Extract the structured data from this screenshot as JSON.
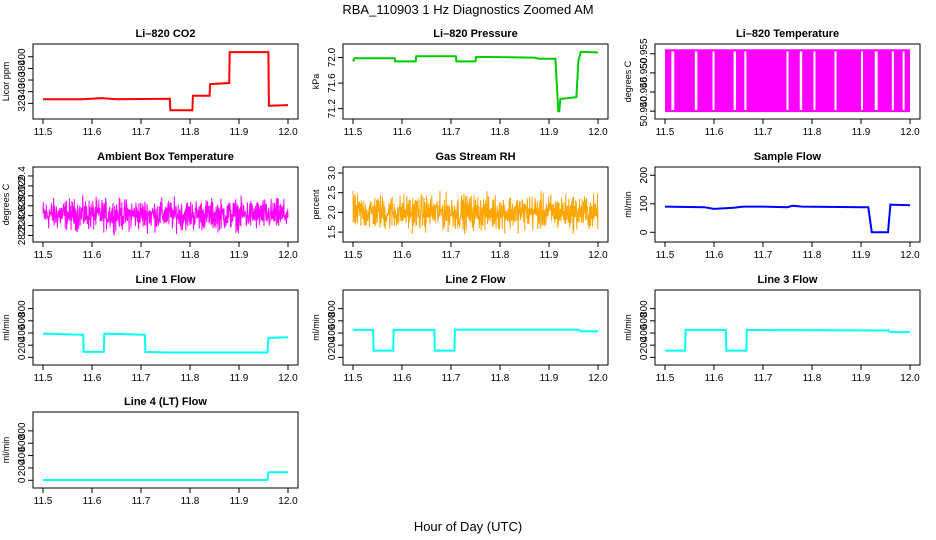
{
  "title": "RBA_110903  1 Hz Diagnostics Zoomed AM",
  "xlabel": "Hour of Day (UTC)",
  "chart_data": [
    {
      "type": "line",
      "title": "Li–820 CO2",
      "ylabel": "Licor ppm",
      "color": "#ff0000",
      "xlim": [
        11.5,
        12.0
      ],
      "ylim": [
        300,
        415
      ],
      "xticks": [
        "11.5",
        "11.6",
        "11.7",
        "11.8",
        "11.9",
        "12.0"
      ],
      "yticks": [
        "320",
        "340",
        "360",
        "380",
        "400"
      ],
      "points": [
        [
          11.5,
          327
        ],
        [
          11.58,
          327
        ],
        [
          11.62,
          329
        ],
        [
          11.65,
          327
        ],
        [
          11.759,
          328
        ],
        [
          11.76,
          308
        ],
        [
          11.805,
          308
        ],
        [
          11.806,
          333
        ],
        [
          11.84,
          333
        ],
        [
          11.841,
          353
        ],
        [
          11.88,
          355
        ],
        [
          11.881,
          408
        ],
        [
          11.96,
          408
        ],
        [
          11.961,
          316
        ],
        [
          12.0,
          317
        ]
      ]
    },
    {
      "type": "line",
      "title": "Li–820 Pressure",
      "ylabel": "kPa",
      "color": "#00cc00",
      "xlim": [
        11.5,
        12.0
      ],
      "ylim": [
        71.1,
        72.15
      ],
      "xticks": [
        "11.5",
        "11.6",
        "11.7",
        "11.8",
        "11.9",
        "12.0"
      ],
      "yticks": [
        "71.2",
        "71.6",
        "72.0"
      ],
      "points": [
        [
          11.5,
          71.94
        ],
        [
          11.503,
          71.99
        ],
        [
          11.585,
          71.99
        ],
        [
          11.586,
          71.94
        ],
        [
          11.628,
          71.94
        ],
        [
          11.629,
          72.02
        ],
        [
          11.71,
          72.02
        ],
        [
          11.711,
          71.94
        ],
        [
          11.75,
          71.94
        ],
        [
          11.751,
          72.01
        ],
        [
          11.87,
          72.0
        ],
        [
          11.88,
          71.98
        ],
        [
          11.913,
          71.98
        ],
        [
          11.919,
          71.16
        ],
        [
          11.921,
          71.16
        ],
        [
          11.923,
          71.35
        ],
        [
          11.956,
          71.38
        ],
        [
          11.96,
          71.95
        ],
        [
          11.965,
          72.09
        ],
        [
          12.0,
          72.08
        ]
      ]
    },
    {
      "type": "area",
      "title": "Li–820 Temperature",
      "ylabel": "degrees C",
      "color": "#ff00ff",
      "xlim": [
        11.5,
        12.0
      ],
      "ylim": [
        50.939,
        50.9565
      ],
      "xticks": [
        "11.5",
        "11.6",
        "11.7",
        "11.8",
        "11.9",
        "12.0"
      ],
      "yticks": [
        "50.940",
        "50.945",
        "50.950",
        "50.955"
      ],
      "y_low": 50.94,
      "y_high": 50.9559,
      "gap_ranges": [
        [
          11.513,
          11.519
        ],
        [
          11.561,
          11.566
        ],
        [
          11.597,
          11.601
        ],
        [
          11.64,
          11.645
        ],
        [
          11.662,
          11.666
        ],
        [
          11.748,
          11.752
        ],
        [
          11.775,
          11.78
        ],
        [
          11.803,
          11.806
        ],
        [
          11.846,
          11.85
        ],
        [
          11.9,
          11.903
        ],
        [
          11.928,
          11.934
        ],
        [
          11.963,
          11.966
        ],
        [
          11.985,
          11.988
        ]
      ]
    },
    {
      "type": "line",
      "title": "Ambient Box Temperature",
      "ylabel": "degrees C",
      "color": "#ff00ff",
      "xlim": [
        11.5,
        12.0
      ],
      "ylim": [
        28.15,
        29.5
      ],
      "xticks": [
        "11.5",
        "11.6",
        "11.7",
        "11.8",
        "11.9",
        "12.0"
      ],
      "yticks": [
        "28.2",
        "28.4",
        "28.6",
        "28.8",
        "29.0",
        "29.2",
        "29.4"
      ],
      "noise": {
        "center": 28.62,
        "spread": 0.45,
        "samples": 900
      }
    },
    {
      "type": "line",
      "title": "Gas Stream RH",
      "ylabel": "percent",
      "color": "#ffa500",
      "xlim": [
        11.5,
        12.0
      ],
      "ylim": [
        1.35,
        3.05
      ],
      "xticks": [
        "11.5",
        "11.6",
        "11.7",
        "11.8",
        "11.9",
        "12.0"
      ],
      "yticks": [
        "1.5",
        "2.0",
        "2.5",
        "3.0"
      ],
      "noise": {
        "center": 2.0,
        "spread": 0.65,
        "samples": 900
      }
    },
    {
      "type": "line",
      "title": "Sample Flow",
      "ylabel": "ml/min",
      "color": "#0000ff",
      "xlim": [
        11.5,
        12.0
      ],
      "ylim": [
        -20,
        215
      ],
      "xticks": [
        "11.5",
        "11.6",
        "11.7",
        "11.8",
        "11.9",
        "12.0"
      ],
      "yticks": [
        "0",
        "100",
        "200"
      ],
      "points": [
        [
          11.5,
          90
        ],
        [
          11.58,
          88
        ],
        [
          11.6,
          82
        ],
        [
          11.64,
          86
        ],
        [
          11.66,
          90
        ],
        [
          11.7,
          90
        ],
        [
          11.75,
          88
        ],
        [
          11.76,
          93
        ],
        [
          11.78,
          90
        ],
        [
          11.905,
          88
        ],
        [
          11.915,
          88
        ],
        [
          11.922,
          0
        ],
        [
          11.955,
          0
        ],
        [
          11.96,
          97
        ],
        [
          12.0,
          95
        ]
      ]
    },
    {
      "type": "line",
      "title": "Line 1 Flow",
      "ylabel": "ml/min",
      "color": "#00ffff",
      "xlim": [
        11.5,
        12.0
      ],
      "ylim": [
        -60,
        1040
      ],
      "xticks": [
        "11.5",
        "11.6",
        "11.7",
        "11.8",
        "11.9",
        "12.0"
      ],
      "yticks": [
        "0",
        "200",
        "400",
        "600",
        "800"
      ],
      "points": [
        [
          11.5,
          390
        ],
        [
          11.582,
          370
        ],
        [
          11.583,
          90
        ],
        [
          11.624,
          90
        ],
        [
          11.625,
          390
        ],
        [
          11.708,
          370
        ],
        [
          11.709,
          90
        ],
        [
          11.755,
          80
        ],
        [
          11.958,
          80
        ],
        [
          11.96,
          320
        ],
        [
          12.0,
          330
        ]
      ]
    },
    {
      "type": "line",
      "title": "Line 2 Flow",
      "ylabel": "ml/min",
      "color": "#00ffff",
      "xlim": [
        11.5,
        12.0
      ],
      "ylim": [
        -60,
        1040
      ],
      "xticks": [
        "11.5",
        "11.6",
        "11.7",
        "11.8",
        "11.9",
        "12.0"
      ],
      "yticks": [
        "0",
        "200",
        "400",
        "600",
        "800"
      ],
      "points": [
        [
          11.5,
          450
        ],
        [
          11.541,
          450
        ],
        [
          11.542,
          110
        ],
        [
          11.582,
          110
        ],
        [
          11.583,
          450
        ],
        [
          11.666,
          450
        ],
        [
          11.667,
          110
        ],
        [
          11.707,
          110
        ],
        [
          11.708,
          455
        ],
        [
          11.96,
          455
        ],
        [
          11.965,
          430
        ],
        [
          12.0,
          430
        ]
      ]
    },
    {
      "type": "line",
      "title": "Line 3 Flow",
      "ylabel": "ml/min",
      "color": "#00ffff",
      "xlim": [
        11.5,
        12.0
      ],
      "ylim": [
        -60,
        1040
      ],
      "xticks": [
        "11.5",
        "11.6",
        "11.7",
        "11.8",
        "11.9",
        "12.0"
      ],
      "yticks": [
        "0",
        "200",
        "400",
        "600",
        "800"
      ],
      "points": [
        [
          11.5,
          110
        ],
        [
          11.541,
          110
        ],
        [
          11.542,
          450
        ],
        [
          11.624,
          450
        ],
        [
          11.625,
          110
        ],
        [
          11.666,
          110
        ],
        [
          11.667,
          450
        ],
        [
          11.955,
          440
        ],
        [
          11.96,
          415
        ],
        [
          12.0,
          415
        ]
      ]
    },
    {
      "type": "line",
      "title": "Line 4 (LT) Flow",
      "ylabel": "ml/min",
      "color": "#00ffff",
      "xlim": [
        11.5,
        12.0
      ],
      "ylim": [
        -60,
        1040
      ],
      "xticks": [
        "11.5",
        "11.6",
        "11.7",
        "11.8",
        "11.9",
        "12.0"
      ],
      "yticks": [
        "0",
        "200",
        "400",
        "600",
        "800"
      ],
      "points": [
        [
          11.5,
          5
        ],
        [
          11.958,
          5
        ],
        [
          11.96,
          130
        ],
        [
          12.0,
          130
        ]
      ]
    }
  ]
}
